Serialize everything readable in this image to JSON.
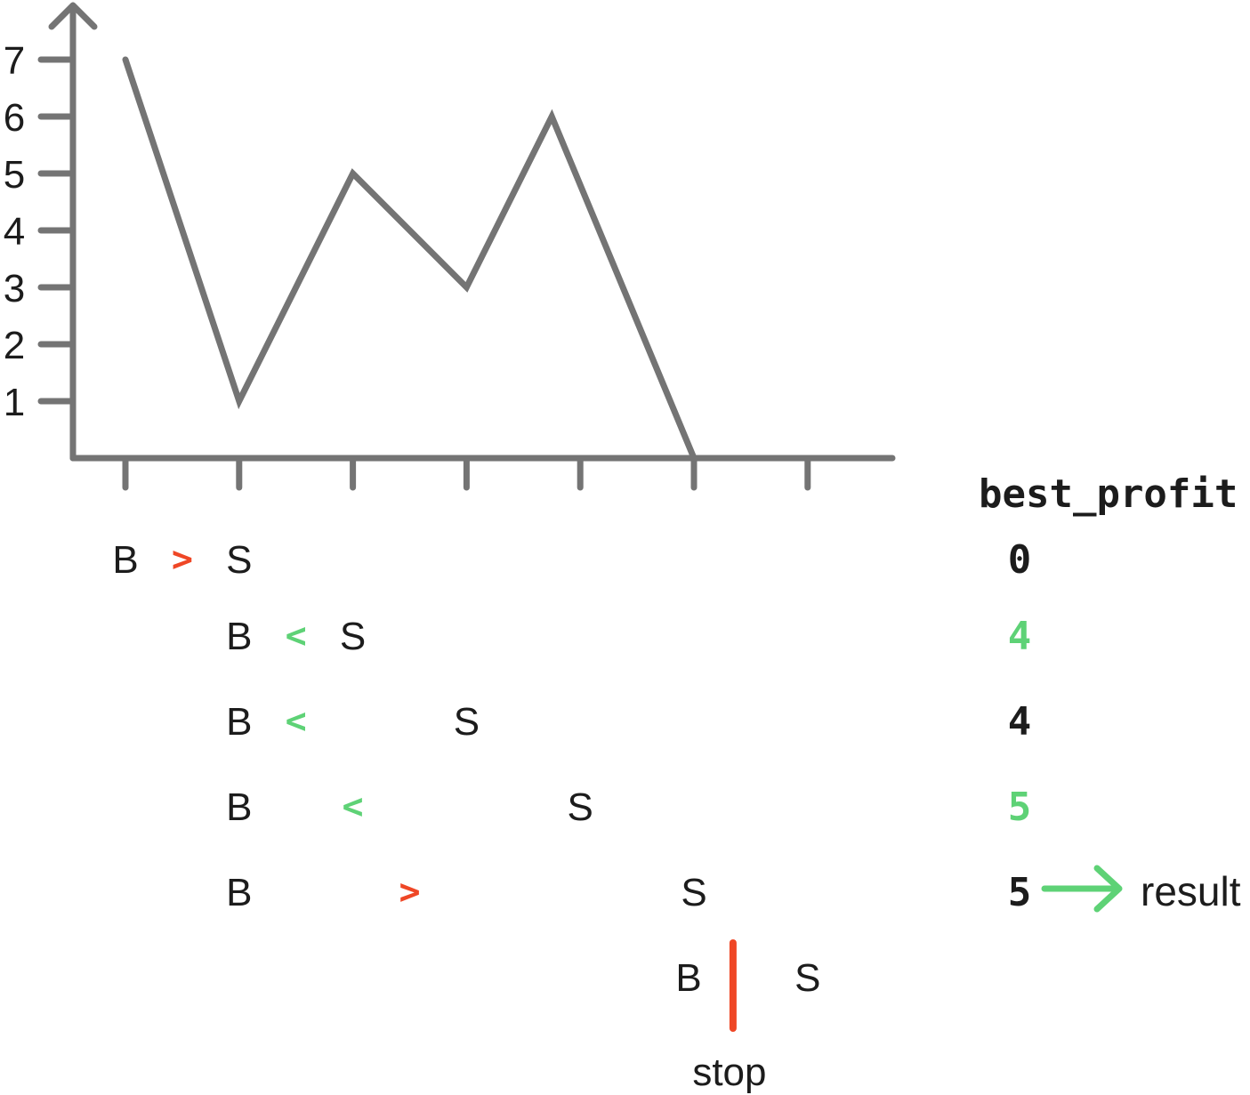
{
  "chart_data": {
    "type": "line",
    "title": "",
    "xlabel": "",
    "ylabel": "",
    "y_ticks": [
      "1",
      "2",
      "3",
      "4",
      "5",
      "6",
      "7"
    ],
    "x_tick_count": 7,
    "ylim": [
      0,
      7.5
    ],
    "values": [
      7,
      1,
      5,
      3,
      6,
      0
    ],
    "grid": false
  },
  "colors": {
    "line": "#747474",
    "axis": "#747474",
    "text": "#1c1c1c",
    "green": "#5ed276",
    "red": "#ef4726"
  },
  "best_profit_header": "best_profit",
  "rows": [
    {
      "buy": "B",
      "op": ">",
      "op_color": "red",
      "sell": "S",
      "buy_col": 0,
      "op_col": 0,
      "sell_col": 1,
      "profit": "0",
      "profit_color": "text"
    },
    {
      "buy": "B",
      "op": "<",
      "op_color": "green",
      "sell": "S",
      "buy_col": 1,
      "op_col": 1,
      "sell_col": 2,
      "profit": "4",
      "profit_color": "green"
    },
    {
      "buy": "B",
      "op": "<",
      "op_color": "green",
      "sell": "S",
      "buy_col": 1,
      "op_col": 1.5,
      "sell_col": 3,
      "profit": "4",
      "profit_color": "text"
    },
    {
      "buy": "B",
      "op": "<",
      "op_color": "green",
      "sell": "S",
      "buy_col": 1,
      "op_col": 2,
      "sell_col": 4,
      "profit": "5",
      "profit_color": "green"
    },
    {
      "buy": "B",
      "op": ">",
      "op_color": "red",
      "sell": "S",
      "buy_col": 1,
      "op_col": 2.5,
      "sell_col": 5,
      "profit": "5",
      "profit_color": "text"
    }
  ],
  "stop_row": {
    "buy": "B",
    "sell": "S",
    "buy_col": 5,
    "sell_col": 6,
    "label": "stop"
  },
  "result_label": "result"
}
